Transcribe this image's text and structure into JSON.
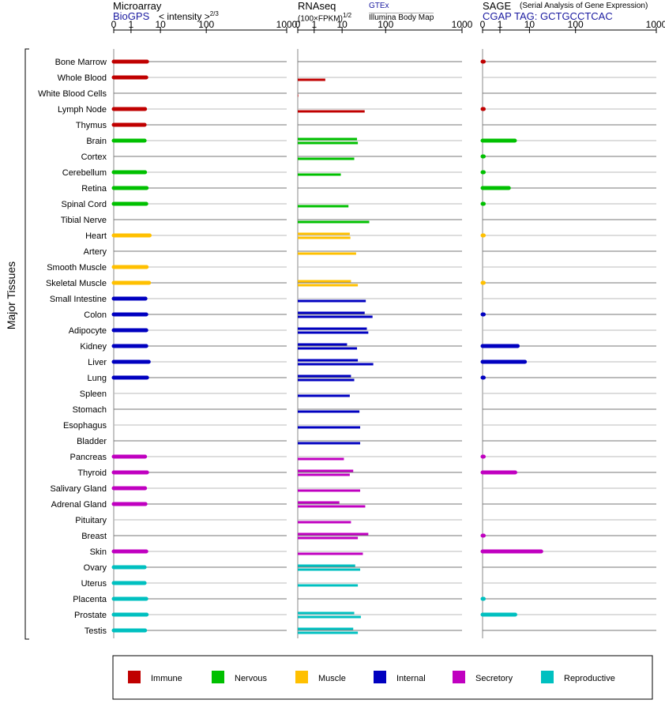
{
  "headers": {
    "microarray": {
      "title": "Microarray",
      "source": "BioGPS",
      "units": "< intensity >",
      "units_exp": "2/3"
    },
    "rnaseq": {
      "title": "RNAseq",
      "source": "GTEx",
      "units": "(100×FPKM)",
      "units_exp": "1/2",
      "subsource": "Illumina Body Map"
    },
    "sage": {
      "title": "SAGE",
      "subtitle": "(Serial Analysis of Gene Expression)",
      "source": "CGAP",
      "tag_label": "TAG:",
      "tag": "GCTGCCTCAC"
    }
  },
  "axis_ticks": [
    "0",
    "1",
    "10",
    "100",
    "1000"
  ],
  "y_group_label": "Major Tissues",
  "colors": {
    "immune": "#c00000",
    "nervous": "#00c000",
    "muscle": "#ffc000",
    "internal": "#0000c0",
    "secretory": "#c000c0",
    "reproductive": "#00c0c0"
  },
  "legend": [
    {
      "key": "immune",
      "label": "Immune"
    },
    {
      "key": "nervous",
      "label": "Nervous"
    },
    {
      "key": "muscle",
      "label": "Muscle"
    },
    {
      "key": "internal",
      "label": "Internal"
    },
    {
      "key": "secretory",
      "label": "Secretory"
    },
    {
      "key": "reproductive",
      "label": "Reproductive"
    }
  ],
  "chart_data": {
    "type": "bar",
    "x_scale": "log-like (0, 1, 10, 100, 1000)",
    "xlim": [
      0,
      1000
    ],
    "panels": [
      "Microarray",
      "RNAseq",
      "SAGE"
    ],
    "tissues": [
      {
        "name": "Bone Marrow",
        "group": "immune",
        "microarray": 3.5,
        "rnaseq": [],
        "sage": 0.05
      },
      {
        "name": "Whole Blood",
        "group": "immune",
        "microarray": 3.3,
        "rnaseq": [
          2.5
        ],
        "sage": null
      },
      {
        "name": "White Blood Cells",
        "group": "immune",
        "microarray": null,
        "rnaseq": [
          0.03
        ],
        "sage": null
      },
      {
        "name": "Lymph Node",
        "group": "immune",
        "microarray": 3.0,
        "rnaseq": [
          33
        ],
        "sage": 0.05
      },
      {
        "name": "Thymus",
        "group": "immune",
        "microarray": 2.9,
        "rnaseq": [],
        "sage": null
      },
      {
        "name": "Brain",
        "group": "nervous",
        "microarray": 2.9,
        "rnaseq": [
          22,
          23
        ],
        "sage": 3.2
      },
      {
        "name": "Cortex",
        "group": "nervous",
        "microarray": null,
        "rnaseq": [
          19
        ],
        "sage": 0.02
      },
      {
        "name": "Cerebellum",
        "group": "nervous",
        "microarray": 3.0,
        "rnaseq": [
          9
        ],
        "sage": 0.03
      },
      {
        "name": "Retina",
        "group": "nervous",
        "microarray": 3.4,
        "rnaseq": [],
        "sage": 2.0
      },
      {
        "name": "Spinal Cord",
        "group": "nervous",
        "microarray": 3.3,
        "rnaseq": [
          14
        ],
        "sage": 0.03
      },
      {
        "name": "Tibial Nerve",
        "group": "nervous",
        "microarray": null,
        "rnaseq": [
          42
        ],
        "sage": null
      },
      {
        "name": "Heart",
        "group": "muscle",
        "microarray": 4.3,
        "rnaseq": [
          15,
          15.5
        ],
        "sage": 0.02
      },
      {
        "name": "Artery",
        "group": "muscle",
        "microarray": null,
        "rnaseq": [
          21
        ],
        "sage": null
      },
      {
        "name": "Smooth Muscle",
        "group": "muscle",
        "microarray": 3.4,
        "rnaseq": [],
        "sage": null
      },
      {
        "name": "Skeletal Muscle",
        "group": "muscle",
        "microarray": 4.1,
        "rnaseq": [
          16,
          23
        ],
        "sage": 0.02
      },
      {
        "name": "Small Intestine",
        "group": "internal",
        "microarray": 3.1,
        "rnaseq": [
          35
        ],
        "sage": null
      },
      {
        "name": "Colon",
        "group": "internal",
        "microarray": 3.3,
        "rnaseq": [
          33,
          50
        ],
        "sage": 0.05
      },
      {
        "name": "Adipocyte",
        "group": "internal",
        "microarray": 3.3,
        "rnaseq": [
          37,
          40
        ],
        "sage": null
      },
      {
        "name": "Kidney",
        "group": "internal",
        "microarray": 3.3,
        "rnaseq": [
          13,
          22
        ],
        "sage": 4.0
      },
      {
        "name": "Liver",
        "group": "internal",
        "microarray": 4.0,
        "rnaseq": [
          23,
          52
        ],
        "sage": 7.0
      },
      {
        "name": "Lung",
        "group": "internal",
        "microarray": 3.5,
        "rnaseq": [
          16,
          19
        ],
        "sage": 0.05
      },
      {
        "name": "Spleen",
        "group": "internal",
        "microarray": null,
        "rnaseq": [
          15
        ],
        "sage": null
      },
      {
        "name": "Stomach",
        "group": "internal",
        "microarray": null,
        "rnaseq": [
          25
        ],
        "sage": null
      },
      {
        "name": "Esophagus",
        "group": "internal",
        "microarray": null,
        "rnaseq": [
          26
        ],
        "sage": null
      },
      {
        "name": "Bladder",
        "group": "internal",
        "microarray": null,
        "rnaseq": [
          26
        ],
        "sage": null
      },
      {
        "name": "Pancreas",
        "group": "secretory",
        "microarray": 3.0,
        "rnaseq": [
          11
        ],
        "sage": 0.05
      },
      {
        "name": "Thyroid",
        "group": "secretory",
        "microarray": 3.5,
        "rnaseq": [
          18,
          15
        ],
        "sage": 3.3
      },
      {
        "name": "Salivary Gland",
        "group": "secretory",
        "microarray": 3.0,
        "rnaseq": [
          26
        ],
        "sage": null
      },
      {
        "name": "Adrenal Gland",
        "group": "secretory",
        "microarray": 3.1,
        "rnaseq": [
          8,
          34
        ],
        "sage": null
      },
      {
        "name": "Pituitary",
        "group": "secretory",
        "microarray": null,
        "rnaseq": [
          16
        ],
        "sage": null
      },
      {
        "name": "Breast",
        "group": "secretory",
        "microarray": null,
        "rnaseq": [
          40,
          23
        ],
        "sage": 0.05
      },
      {
        "name": "Skin",
        "group": "secretory",
        "microarray": 3.3,
        "rnaseq": [
          30
        ],
        "sage": 18
      },
      {
        "name": "Ovary",
        "group": "reproductive",
        "microarray": 2.9,
        "rnaseq": [
          20,
          26
        ],
        "sage": null
      },
      {
        "name": "Uterus",
        "group": "reproductive",
        "microarray": 2.9,
        "rnaseq": [
          23
        ],
        "sage": null
      },
      {
        "name": "Placenta",
        "group": "reproductive",
        "microarray": 3.3,
        "rnaseq": [],
        "sage": 0.03
      },
      {
        "name": "Prostate",
        "group": "reproductive",
        "microarray": 3.4,
        "rnaseq": [
          19,
          27
        ],
        "sage": 3.3
      },
      {
        "name": "Testis",
        "group": "reproductive",
        "microarray": 3.0,
        "rnaseq": [
          18,
          23
        ],
        "sage": null
      }
    ]
  }
}
